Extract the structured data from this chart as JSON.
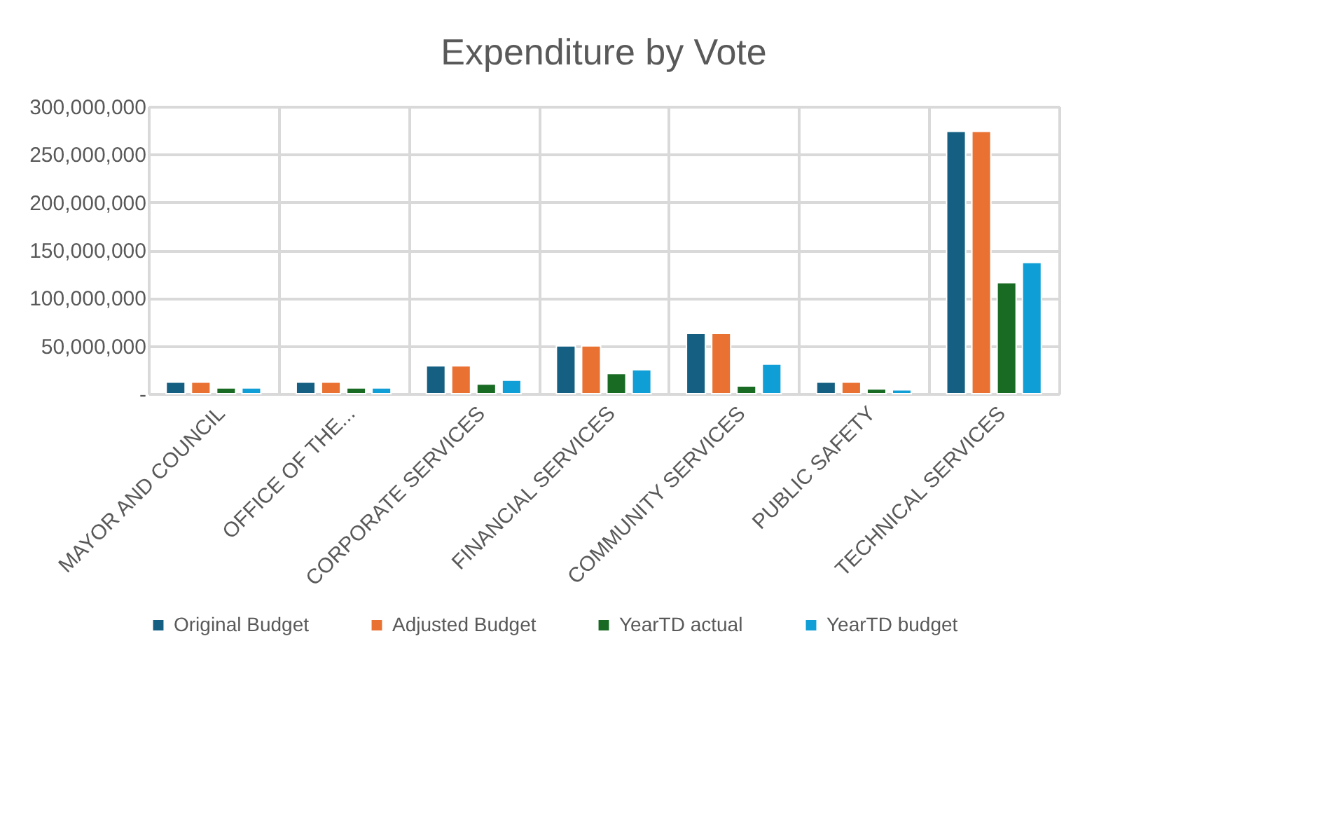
{
  "chart_data": {
    "type": "bar",
    "title": "Expenditure by Vote",
    "categories": [
      "MAYOR AND COUNCIL",
      "OFFICE OF THE...",
      "CORPORATE SERVICES",
      "FINANCIAL SERVICES",
      "COMMUNITY SERVICES",
      "PUBLIC SAFETY",
      "TECHNICAL SERVICES"
    ],
    "series": [
      {
        "name": "Original Budget",
        "color": "#156082",
        "values": [
          12000000,
          12000000,
          29000000,
          50000000,
          63000000,
          12000000,
          274000000
        ]
      },
      {
        "name": "Adjusted Budget",
        "color": "#e97132",
        "values": [
          12000000,
          12000000,
          29000000,
          50000000,
          63000000,
          12000000,
          274000000
        ]
      },
      {
        "name": "YearTD actual",
        "color": "#196b24",
        "values": [
          6000000,
          6000000,
          10000000,
          21000000,
          8000000,
          5000000,
          116000000
        ]
      },
      {
        "name": "YearTD budget",
        "color": "#0f9ed5",
        "values": [
          6000000,
          6000000,
          14000000,
          25000000,
          31000000,
          4000000,
          137000000
        ]
      }
    ],
    "ylim": [
      0,
      300000000
    ],
    "yticks": [
      {
        "value": 0,
        "label": "-"
      },
      {
        "value": 50000000,
        "label": "50,000,000"
      },
      {
        "value": 100000000,
        "label": "100,000,000"
      },
      {
        "value": 150000000,
        "label": "150,000,000"
      },
      {
        "value": 200000000,
        "label": "200,000,000"
      },
      {
        "value": 250000000,
        "label": "250,000,000"
      },
      {
        "value": 300000000,
        "label": "300,000,000"
      }
    ],
    "grid": true,
    "legend": "bottom"
  }
}
